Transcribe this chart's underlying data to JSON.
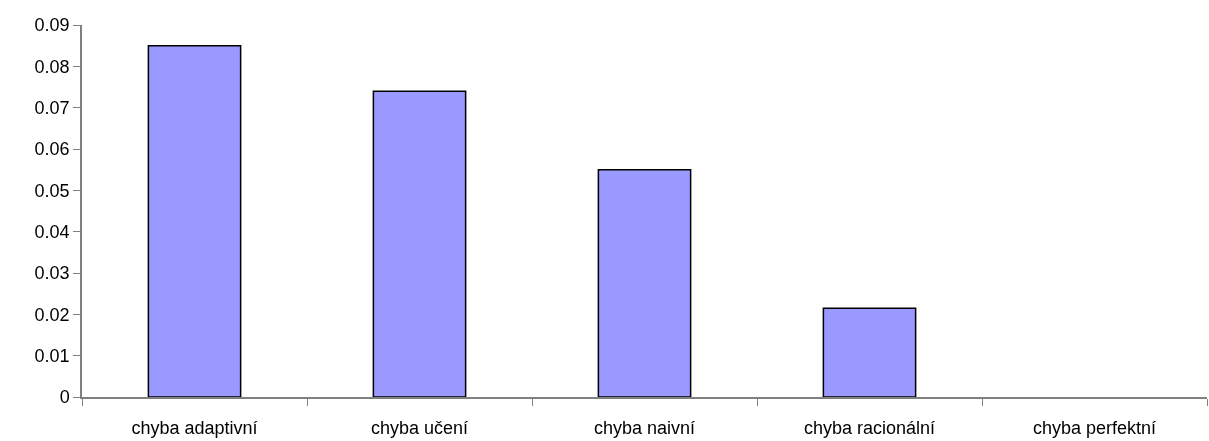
{
  "chart_data": {
    "type": "bar",
    "categories": [
      "chyba adaptivní",
      "chyba učení",
      "chyba naivní",
      "chyba racionální",
      "chyba perfektní"
    ],
    "values": [
      0.085,
      0.074,
      0.055,
      0.0215,
      0
    ],
    "color": "#9999ff",
    "ylim": [
      0,
      0.09
    ],
    "yticks": [
      0,
      0.01,
      0.02,
      0.03,
      0.04,
      0.05,
      0.06,
      0.07,
      0.08,
      0.09
    ]
  }
}
